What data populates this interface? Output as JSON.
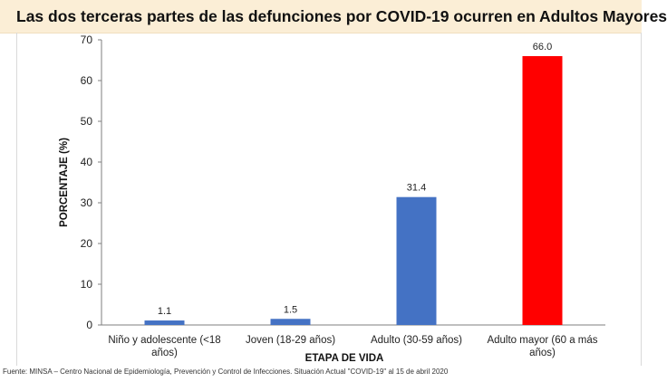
{
  "chart_data": {
    "type": "bar",
    "title": "Las dos terceras partes de las defunciones por COVID-19 ocurren en Adultos Mayores",
    "xlabel": "ETAPA DE VIDA",
    "ylabel": "PORCENTAJE (%)",
    "ylim": [
      0,
      70
    ],
    "yticks": [
      0,
      10,
      20,
      30,
      40,
      50,
      60,
      70
    ],
    "categories": [
      [
        "Niño y adolescente (<18",
        "años)"
      ],
      [
        "Joven (18-29 años)"
      ],
      [
        "Adulto (30-59 años)"
      ],
      [
        "Adulto mayor (60 a más",
        "años)"
      ]
    ],
    "values": [
      1.1,
      1.5,
      31.4,
      66.0
    ],
    "data_labels": [
      "1.1",
      "1.5",
      "31.4",
      "66.0"
    ],
    "bar_colors": [
      "#4472c4",
      "#4472c4",
      "#4472c4",
      "#ff0000"
    ],
    "grid": false,
    "legend": "none"
  },
  "source": "Fuente: MINSA – Centro Nacional de Epidemiología, Prevención y Control de Infecciones. Situación Actual \"COVID-19\" al 15 de abril 2020",
  "colors": {
    "title_background": "#fbeed6",
    "bar": "#4472c4",
    "highlight_bar": "#ff0000"
  }
}
